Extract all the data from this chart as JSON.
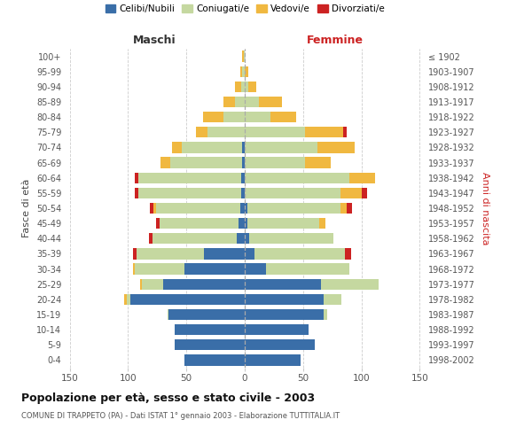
{
  "age_groups_bottom_to_top": [
    "0-4",
    "5-9",
    "10-14",
    "15-19",
    "20-24",
    "25-29",
    "30-34",
    "35-39",
    "40-44",
    "45-49",
    "50-54",
    "55-59",
    "60-64",
    "65-69",
    "70-74",
    "75-79",
    "80-84",
    "85-89",
    "90-94",
    "95-99",
    "100+"
  ],
  "birth_years_bottom_to_top": [
    "1998-2002",
    "1993-1997",
    "1988-1992",
    "1983-1987",
    "1978-1982",
    "1973-1977",
    "1968-1972",
    "1963-1967",
    "1958-1962",
    "1953-1957",
    "1948-1952",
    "1943-1947",
    "1938-1942",
    "1933-1937",
    "1928-1932",
    "1923-1927",
    "1918-1922",
    "1913-1917",
    "1908-1912",
    "1903-1907",
    "≤ 1902"
  ],
  "male_celibi": [
    52,
    60,
    60,
    65,
    98,
    70,
    52,
    35,
    7,
    5,
    4,
    3,
    3,
    2,
    2,
    0,
    0,
    0,
    0,
    0,
    0
  ],
  "male_coniugati": [
    0,
    0,
    0,
    1,
    3,
    18,
    42,
    58,
    72,
    68,
    72,
    88,
    88,
    62,
    52,
    32,
    18,
    8,
    3,
    2,
    1
  ],
  "male_vedovi": [
    0,
    0,
    0,
    0,
    2,
    2,
    2,
    0,
    0,
    0,
    2,
    0,
    0,
    8,
    8,
    10,
    18,
    10,
    5,
    2,
    1
  ],
  "male_divorziati": [
    0,
    0,
    0,
    0,
    0,
    0,
    0,
    3,
    3,
    3,
    3,
    3,
    3,
    0,
    0,
    0,
    0,
    0,
    0,
    0,
    0
  ],
  "fem_nubili": [
    48,
    60,
    55,
    68,
    68,
    65,
    18,
    8,
    4,
    2,
    2,
    0,
    0,
    0,
    0,
    0,
    0,
    0,
    0,
    0,
    0
  ],
  "fem_coniugate": [
    0,
    0,
    0,
    3,
    15,
    50,
    72,
    78,
    72,
    62,
    80,
    82,
    90,
    52,
    62,
    52,
    22,
    12,
    3,
    0,
    0
  ],
  "fem_vedove": [
    0,
    0,
    0,
    0,
    0,
    0,
    0,
    0,
    0,
    5,
    5,
    18,
    22,
    22,
    32,
    32,
    22,
    20,
    7,
    3,
    0
  ],
  "fem_divorziate": [
    0,
    0,
    0,
    0,
    0,
    0,
    0,
    5,
    0,
    0,
    5,
    5,
    0,
    0,
    0,
    3,
    0,
    0,
    0,
    0,
    0
  ],
  "color_celibi": "#3a6ea8",
  "color_coniugati": "#c5d8a0",
  "color_vedovi": "#f0b840",
  "color_divorziati": "#cc2222",
  "title": "Popolazione per età, sesso e stato civile - 2003",
  "subtitle": "COMUNE DI TRAPPETO (PA) - Dati ISTAT 1° gennaio 2003 - Elaborazione TUTTITALIA.IT",
  "legend_labels": [
    "Celibi/Nubili",
    "Coniugati/e",
    "Vedovi/e",
    "Divorziati/e"
  ],
  "xlim": 155,
  "xticks": [
    -150,
    -100,
    -50,
    0,
    50,
    100,
    150
  ],
  "xtick_labels": [
    "150",
    "100",
    "50",
    "0",
    "50",
    "100",
    "150"
  ]
}
